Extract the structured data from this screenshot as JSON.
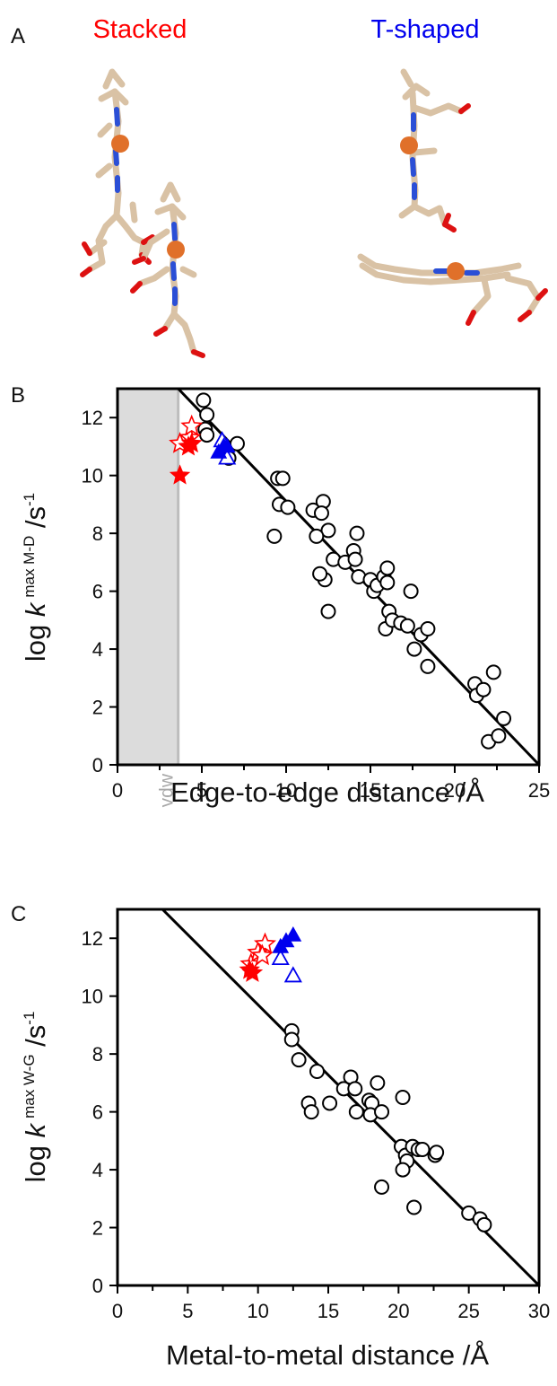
{
  "panel_a": {
    "label": "A",
    "stacked_title": "Stacked",
    "tshaped_title": "T-shaped",
    "colors": {
      "stacked": "#ff0000",
      "tshaped": "#0000ee",
      "carbon": "#d9c2a5",
      "nitrogen": "#2b4fd6",
      "oxygen": "#dd1111",
      "metal": "#e0702a"
    }
  },
  "chart_data": [
    {
      "panel": "B",
      "type": "scatter",
      "xlabel": "Edge-to-edge distance /Å",
      "ylabel": {
        "prefix": "log ",
        "k": "k",
        "superscript": "max M-D",
        "unit": " /s",
        "exp": "-1"
      },
      "xlim": [
        0,
        25
      ],
      "ylim": [
        0,
        13
      ],
      "xticks": [
        0,
        5,
        10,
        15,
        20,
        25
      ],
      "yticks": [
        0,
        2,
        4,
        6,
        8,
        10,
        12
      ],
      "shaded_region": {
        "x": [
          0,
          3.6
        ],
        "label": "vdw",
        "color": "#dcdcdc"
      },
      "fit_line": {
        "x": [
          3.6,
          25
        ],
        "y": [
          13,
          0
        ]
      },
      "series": [
        {
          "marker": "open-circle",
          "color": "#000000",
          "points": [
            [
              5.1,
              12.6
            ],
            [
              5.3,
              12.1
            ],
            [
              5.2,
              11.6
            ],
            [
              5.3,
              11.4
            ],
            [
              7.1,
              11.1
            ],
            [
              6.6,
              10.6
            ],
            [
              9.5,
              9.9
            ],
            [
              9.8,
              9.9
            ],
            [
              9.6,
              9.0
            ],
            [
              10.1,
              8.9
            ],
            [
              9.3,
              7.9
            ],
            [
              11.6,
              8.8
            ],
            [
              12.2,
              9.1
            ],
            [
              12.1,
              8.7
            ],
            [
              12.5,
              8.1
            ],
            [
              11.8,
              7.9
            ],
            [
              12.8,
              7.1
            ],
            [
              12.3,
              6.4
            ],
            [
              12.0,
              6.6
            ],
            [
              12.5,
              5.3
            ],
            [
              13.5,
              7.0
            ],
            [
              14.0,
              7.4
            ],
            [
              14.2,
              8.0
            ],
            [
              14.1,
              7.1
            ],
            [
              14.3,
              6.5
            ],
            [
              15.0,
              6.4
            ],
            [
              15.2,
              6.0
            ],
            [
              15.4,
              6.2
            ],
            [
              15.8,
              6.5
            ],
            [
              16.0,
              6.8
            ],
            [
              16.0,
              6.3
            ],
            [
              16.1,
              5.3
            ],
            [
              15.9,
              4.7
            ],
            [
              16.3,
              5.0
            ],
            [
              16.8,
              4.9
            ],
            [
              17.2,
              4.8
            ],
            [
              17.4,
              6.0
            ],
            [
              17.6,
              4.0
            ],
            [
              18.0,
              4.5
            ],
            [
              18.4,
              4.7
            ],
            [
              18.4,
              3.4
            ],
            [
              21.2,
              2.8
            ],
            [
              21.3,
              2.4
            ],
            [
              21.7,
              2.6
            ],
            [
              22.0,
              0.8
            ],
            [
              22.3,
              3.2
            ],
            [
              22.6,
              1.0
            ],
            [
              22.9,
              1.6
            ]
          ]
        },
        {
          "marker": "open-star",
          "color": "#ff0000",
          "points": [
            [
              3.7,
              11.1
            ],
            [
              4.3,
              11.3
            ],
            [
              4.4,
              11.7
            ]
          ]
        },
        {
          "marker": "filled-star",
          "color": "#ff0000",
          "points": [
            [
              3.7,
              10.0
            ],
            [
              4.2,
              11.0
            ],
            [
              4.4,
              11.1
            ]
          ]
        },
        {
          "marker": "open-triangle",
          "color": "#0000ee",
          "points": [
            [
              6.2,
              11.2
            ],
            [
              6.5,
              10.6
            ]
          ]
        },
        {
          "marker": "filled-triangle",
          "color": "#0000ee",
          "points": [
            [
              6.0,
              10.8
            ],
            [
              6.3,
              11.0
            ],
            [
              6.5,
              11.0
            ]
          ]
        }
      ]
    },
    {
      "panel": "C",
      "type": "scatter",
      "xlabel": "Metal-to-metal distance /Å",
      "ylabel": {
        "prefix": "log ",
        "k": "k",
        "superscript": "max W-G",
        "unit": " /s",
        "exp": "-1"
      },
      "xlim": [
        0,
        30
      ],
      "ylim": [
        0,
        13
      ],
      "xticks": [
        0,
        5,
        10,
        15,
        20,
        25,
        30
      ],
      "yticks": [
        0,
        2,
        4,
        6,
        8,
        10,
        12
      ],
      "fit_line": {
        "x": [
          3.2,
          30
        ],
        "y": [
          13,
          0
        ]
      },
      "series": [
        {
          "marker": "open-circle",
          "color": "#000000",
          "points": [
            [
              12.4,
              8.8
            ],
            [
              12.4,
              8.5
            ],
            [
              12.9,
              7.8
            ],
            [
              14.2,
              7.4
            ],
            [
              13.6,
              6.3
            ],
            [
              13.8,
              6.0
            ],
            [
              15.1,
              6.3
            ],
            [
              16.1,
              6.8
            ],
            [
              16.6,
              7.2
            ],
            [
              16.9,
              6.8
            ],
            [
              17.0,
              6.0
            ],
            [
              17.9,
              6.4
            ],
            [
              18.1,
              6.3
            ],
            [
              18.0,
              5.9
            ],
            [
              18.5,
              7.0
            ],
            [
              18.8,
              6.0
            ],
            [
              18.8,
              3.4
            ],
            [
              20.3,
              6.5
            ],
            [
              20.2,
              4.8
            ],
            [
              20.5,
              4.5
            ],
            [
              20.6,
              4.3
            ],
            [
              21.0,
              4.8
            ],
            [
              21.4,
              4.7
            ],
            [
              21.7,
              4.7
            ],
            [
              20.3,
              4.0
            ],
            [
              21.1,
              2.7
            ],
            [
              22.6,
              4.5
            ],
            [
              22.7,
              4.6
            ],
            [
              25.0,
              2.5
            ],
            [
              25.8,
              2.3
            ],
            [
              26.1,
              2.1
            ]
          ]
        },
        {
          "marker": "open-star",
          "color": "#ff0000",
          "points": [
            [
              9.5,
              11.1
            ],
            [
              10.0,
              11.5
            ],
            [
              10.5,
              11.8
            ],
            [
              10.3,
              11.4
            ]
          ]
        },
        {
          "marker": "filled-star",
          "color": "#ff0000",
          "points": [
            [
              9.4,
              10.9
            ],
            [
              9.6,
              10.8
            ]
          ]
        },
        {
          "marker": "open-triangle",
          "color": "#0000ee",
          "points": [
            [
              11.6,
              11.3
            ],
            [
              12.5,
              10.7
            ]
          ]
        },
        {
          "marker": "filled-triangle",
          "color": "#0000ee",
          "points": [
            [
              11.6,
              11.7
            ],
            [
              12.0,
              11.9
            ],
            [
              12.5,
              12.1
            ]
          ]
        }
      ]
    }
  ]
}
